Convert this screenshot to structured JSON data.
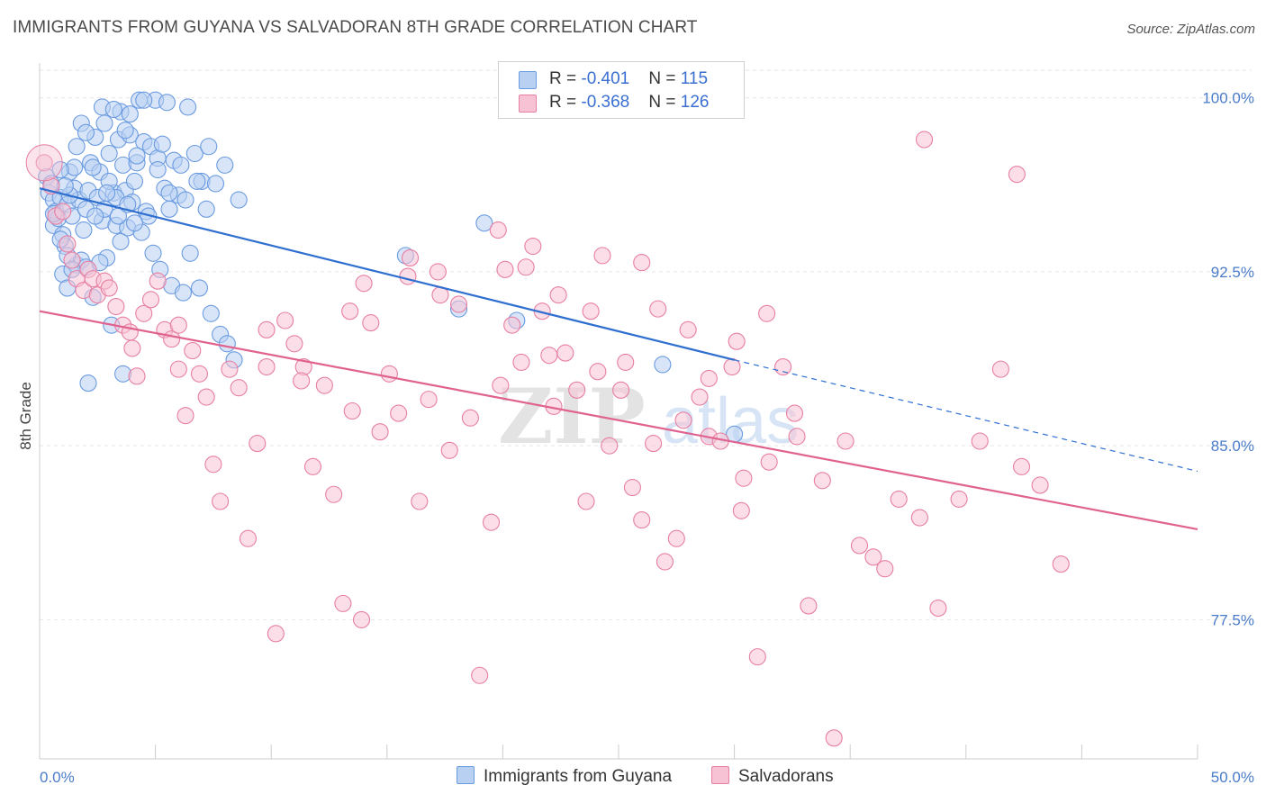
{
  "title": "IMMIGRANTS FROM GUYANA VS SALVADORAN 8TH GRADE CORRELATION CHART",
  "source": "Source: ZipAtlas.com",
  "watermark": {
    "zip": "ZIP",
    "atlas": "atlas"
  },
  "legend": {
    "series1": {
      "r_label": "R = ",
      "r_value": "-0.401",
      "n_label": "N = ",
      "n_value": "115"
    },
    "series2": {
      "r_label": "R = ",
      "r_value": "-0.368",
      "n_label": "N = ",
      "n_value": "126"
    }
  },
  "chart_data": {
    "type": "scatter",
    "xlabel": "",
    "ylabel": "8th Grade",
    "xlim": [
      0,
      50
    ],
    "ylim": [
      71.5,
      101.5
    ],
    "x_tick_labels": [
      {
        "value": 0,
        "label": "0.0%"
      },
      {
        "value": 50,
        "label": "50.0%"
      }
    ],
    "y_tick_labels": [
      {
        "value": 100,
        "label": "100.0%"
      },
      {
        "value": 92.5,
        "label": "92.5%"
      },
      {
        "value": 85,
        "label": "85.0%"
      },
      {
        "value": 77.5,
        "label": "77.5%"
      }
    ],
    "grid": true,
    "series": [
      {
        "name": "Immigrants from Guyana",
        "color": "#6b9be0",
        "fill": "#b8d0f2",
        "trend": {
          "x0": 0,
          "y0": 96.1,
          "x1": 30,
          "y1": 88.7,
          "dashed_to_x": 50,
          "dashed_to_y": 83.9
        },
        "points": [
          [
            0.3,
            96.6
          ],
          [
            0.4,
            95.9
          ],
          [
            0.5,
            96.3
          ],
          [
            0.6,
            95.6
          ],
          [
            0.6,
            94.5
          ],
          [
            0.7,
            95.1
          ],
          [
            0.8,
            94.8
          ],
          [
            0.9,
            95.7
          ],
          [
            1.0,
            94.1
          ],
          [
            1.1,
            93.6
          ],
          [
            1.2,
            95.4
          ],
          [
            1.3,
            96.8
          ],
          [
            1.4,
            94.9
          ],
          [
            1.5,
            96.1
          ],
          [
            1.6,
            92.8
          ],
          [
            1.7,
            95.6
          ],
          [
            1.8,
            93.0
          ],
          [
            1.9,
            94.3
          ],
          [
            2.0,
            95.2
          ],
          [
            2.1,
            96.0
          ],
          [
            2.2,
            97.2
          ],
          [
            2.4,
            98.3
          ],
          [
            2.5,
            95.7
          ],
          [
            2.6,
            96.8
          ],
          [
            2.7,
            94.7
          ],
          [
            2.8,
            95.2
          ],
          [
            2.9,
            93.1
          ],
          [
            3.0,
            97.6
          ],
          [
            3.2,
            95.9
          ],
          [
            3.3,
            94.5
          ],
          [
            3.4,
            98.2
          ],
          [
            3.5,
            99.4
          ],
          [
            3.6,
            97.1
          ],
          [
            3.7,
            96.0
          ],
          [
            3.8,
            94.4
          ],
          [
            3.9,
            98.4
          ],
          [
            4.0,
            95.5
          ],
          [
            4.1,
            96.4
          ],
          [
            4.2,
            97.2
          ],
          [
            4.3,
            99.9
          ],
          [
            4.5,
            98.1
          ],
          [
            4.6,
            95.1
          ],
          [
            4.8,
            97.9
          ],
          [
            5.0,
            99.9
          ],
          [
            5.1,
            97.4
          ],
          [
            5.3,
            98.0
          ],
          [
            5.4,
            96.1
          ],
          [
            5.6,
            95.2
          ],
          [
            5.8,
            97.3
          ],
          [
            6.0,
            95.8
          ],
          [
            1.0,
            92.4
          ],
          [
            1.2,
            91.8
          ],
          [
            2.0,
            92.7
          ],
          [
            2.3,
            91.4
          ],
          [
            2.6,
            92.9
          ],
          [
            3.1,
            90.2
          ],
          [
            3.5,
            93.8
          ],
          [
            4.4,
            94.2
          ],
          [
            4.9,
            93.3
          ],
          [
            5.2,
            92.6
          ],
          [
            5.7,
            91.9
          ],
          [
            6.2,
            91.6
          ],
          [
            6.5,
            93.3
          ],
          [
            6.9,
            91.8
          ],
          [
            7.4,
            90.7
          ],
          [
            7.8,
            89.8
          ],
          [
            8.1,
            89.4
          ],
          [
            8.4,
            88.7
          ],
          [
            2.1,
            87.7
          ],
          [
            3.6,
            88.1
          ],
          [
            1.3,
            95.8
          ],
          [
            1.5,
            97.0
          ],
          [
            1.8,
            98.9
          ],
          [
            2.7,
            99.6
          ],
          [
            3.0,
            96.4
          ],
          [
            3.3,
            95.7
          ],
          [
            3.9,
            99.3
          ],
          [
            4.2,
            97.5
          ],
          [
            4.7,
            94.9
          ],
          [
            5.5,
            99.8
          ],
          [
            6.1,
            97.1
          ],
          [
            6.3,
            95.6
          ],
          [
            6.7,
            97.6
          ],
          [
            7.0,
            96.4
          ],
          [
            7.2,
            95.2
          ],
          [
            7.6,
            96.3
          ],
          [
            8.0,
            97.1
          ],
          [
            8.6,
            95.6
          ],
          [
            0.9,
            96.9
          ],
          [
            1.1,
            96.2
          ],
          [
            1.6,
            97.9
          ],
          [
            2.0,
            98.5
          ],
          [
            2.3,
            97.0
          ],
          [
            2.8,
            98.9
          ],
          [
            3.2,
            99.5
          ],
          [
            3.7,
            98.6
          ],
          [
            4.5,
            99.9
          ],
          [
            5.1,
            96.9
          ],
          [
            5.6,
            95.9
          ],
          [
            6.4,
            99.6
          ],
          [
            6.8,
            96.4
          ],
          [
            7.3,
            97.9
          ],
          [
            2.4,
            94.9
          ],
          [
            2.9,
            95.9
          ],
          [
            3.4,
            94.9
          ],
          [
            3.8,
            95.4
          ],
          [
            4.1,
            94.6
          ],
          [
            0.6,
            95.0
          ],
          [
            0.9,
            93.9
          ],
          [
            1.2,
            93.2
          ],
          [
            1.4,
            92.6
          ],
          [
            15.8,
            93.2
          ],
          [
            18.1,
            90.9
          ],
          [
            19.2,
            94.6
          ],
          [
            20.6,
            90.4
          ],
          [
            26.9,
            88.5
          ],
          [
            30.0,
            85.5
          ]
        ]
      },
      {
        "name": "Salvadorans",
        "color": "#e77fa3",
        "fill": "#f7c3d4",
        "trend": {
          "x0": 0,
          "y0": 90.8,
          "x1": 50,
          "y1": 81.4
        },
        "points": [
          [
            0.2,
            97.2
          ],
          [
            0.5,
            96.2
          ],
          [
            0.7,
            94.9
          ],
          [
            1.0,
            95.1
          ],
          [
            1.2,
            93.7
          ],
          [
            1.4,
            93.0
          ],
          [
            1.6,
            92.2
          ],
          [
            1.9,
            91.7
          ],
          [
            2.1,
            92.6
          ],
          [
            2.3,
            92.2
          ],
          [
            2.5,
            91.5
          ],
          [
            2.8,
            92.1
          ],
          [
            3.0,
            91.8
          ],
          [
            3.3,
            91.0
          ],
          [
            3.6,
            90.2
          ],
          [
            3.9,
            89.9
          ],
          [
            4.2,
            88.0
          ],
          [
            4.5,
            90.7
          ],
          [
            4.8,
            91.3
          ],
          [
            5.1,
            92.1
          ],
          [
            5.4,
            90.0
          ],
          [
            5.7,
            89.6
          ],
          [
            6.0,
            88.3
          ],
          [
            6.3,
            86.3
          ],
          [
            6.6,
            89.1
          ],
          [
            6.9,
            88.1
          ],
          [
            7.2,
            87.1
          ],
          [
            7.5,
            84.2
          ],
          [
            7.8,
            82.6
          ],
          [
            8.2,
            88.3
          ],
          [
            8.6,
            87.5
          ],
          [
            9.0,
            81.0
          ],
          [
            9.4,
            85.1
          ],
          [
            9.8,
            88.4
          ],
          [
            10.2,
            76.9
          ],
          [
            10.6,
            90.4
          ],
          [
            11.0,
            89.4
          ],
          [
            11.4,
            88.4
          ],
          [
            11.8,
            84.1
          ],
          [
            12.3,
            87.6
          ],
          [
            12.7,
            82.9
          ],
          [
            13.1,
            78.2
          ],
          [
            13.5,
            86.5
          ],
          [
            13.9,
            77.5
          ],
          [
            14.3,
            90.3
          ],
          [
            14.7,
            85.6
          ],
          [
            15.1,
            88.1
          ],
          [
            15.5,
            86.4
          ],
          [
            15.9,
            92.3
          ],
          [
            16.4,
            82.6
          ],
          [
            16.8,
            87.0
          ],
          [
            17.3,
            91.5
          ],
          [
            17.7,
            84.8
          ],
          [
            18.1,
            91.1
          ],
          [
            18.6,
            86.2
          ],
          [
            19.0,
            75.1
          ],
          [
            19.5,
            81.7
          ],
          [
            19.9,
            87.6
          ],
          [
            20.4,
            90.2
          ],
          [
            20.8,
            88.6
          ],
          [
            21.3,
            93.6
          ],
          [
            21.7,
            90.8
          ],
          [
            22.2,
            86.7
          ],
          [
            22.7,
            89.0
          ],
          [
            23.2,
            87.4
          ],
          [
            23.6,
            82.6
          ],
          [
            24.1,
            88.2
          ],
          [
            24.6,
            85.0
          ],
          [
            25.1,
            87.4
          ],
          [
            25.6,
            83.2
          ],
          [
            26.0,
            81.8
          ],
          [
            26.5,
            85.1
          ],
          [
            27.0,
            80.0
          ],
          [
            27.5,
            81.0
          ],
          [
            28.0,
            90.0
          ],
          [
            28.5,
            87.1
          ],
          [
            28.9,
            85.4
          ],
          [
            29.4,
            85.2
          ],
          [
            29.9,
            88.4
          ],
          [
            30.4,
            83.6
          ],
          [
            31.0,
            75.9
          ],
          [
            31.5,
            84.3
          ],
          [
            32.1,
            88.4
          ],
          [
            32.7,
            85.4
          ],
          [
            33.2,
            78.1
          ],
          [
            33.8,
            83.5
          ],
          [
            34.3,
            72.4
          ],
          [
            34.8,
            85.2
          ],
          [
            35.4,
            80.7
          ],
          [
            36.0,
            80.2
          ],
          [
            36.5,
            79.7
          ],
          [
            37.1,
            82.7
          ],
          [
            38.0,
            81.9
          ],
          [
            38.8,
            78.0
          ],
          [
            39.7,
            82.7
          ],
          [
            40.6,
            85.2
          ],
          [
            41.5,
            88.3
          ],
          [
            42.4,
            84.1
          ],
          [
            43.2,
            83.3
          ],
          [
            44.1,
            79.9
          ],
          [
            38.2,
            98.2
          ],
          [
            42.2,
            96.7
          ],
          [
            4.0,
            89.2
          ],
          [
            6.0,
            90.2
          ],
          [
            9.8,
            90.0
          ],
          [
            11.3,
            87.8
          ],
          [
            14.0,
            92.0
          ],
          [
            16.0,
            93.1
          ],
          [
            17.2,
            92.5
          ],
          [
            19.8,
            94.3
          ],
          [
            21.0,
            92.7
          ],
          [
            22.4,
            91.5
          ],
          [
            23.8,
            90.8
          ],
          [
            25.3,
            88.6
          ],
          [
            26.7,
            90.9
          ],
          [
            27.8,
            86.1
          ],
          [
            28.9,
            87.9
          ],
          [
            30.1,
            89.5
          ],
          [
            31.4,
            90.7
          ],
          [
            32.6,
            86.4
          ],
          [
            24.3,
            93.2
          ],
          [
            26.0,
            92.9
          ],
          [
            13.4,
            90.8
          ],
          [
            20.1,
            92.6
          ],
          [
            30.3,
            82.2
          ],
          [
            22.0,
            88.9
          ]
        ]
      }
    ]
  }
}
